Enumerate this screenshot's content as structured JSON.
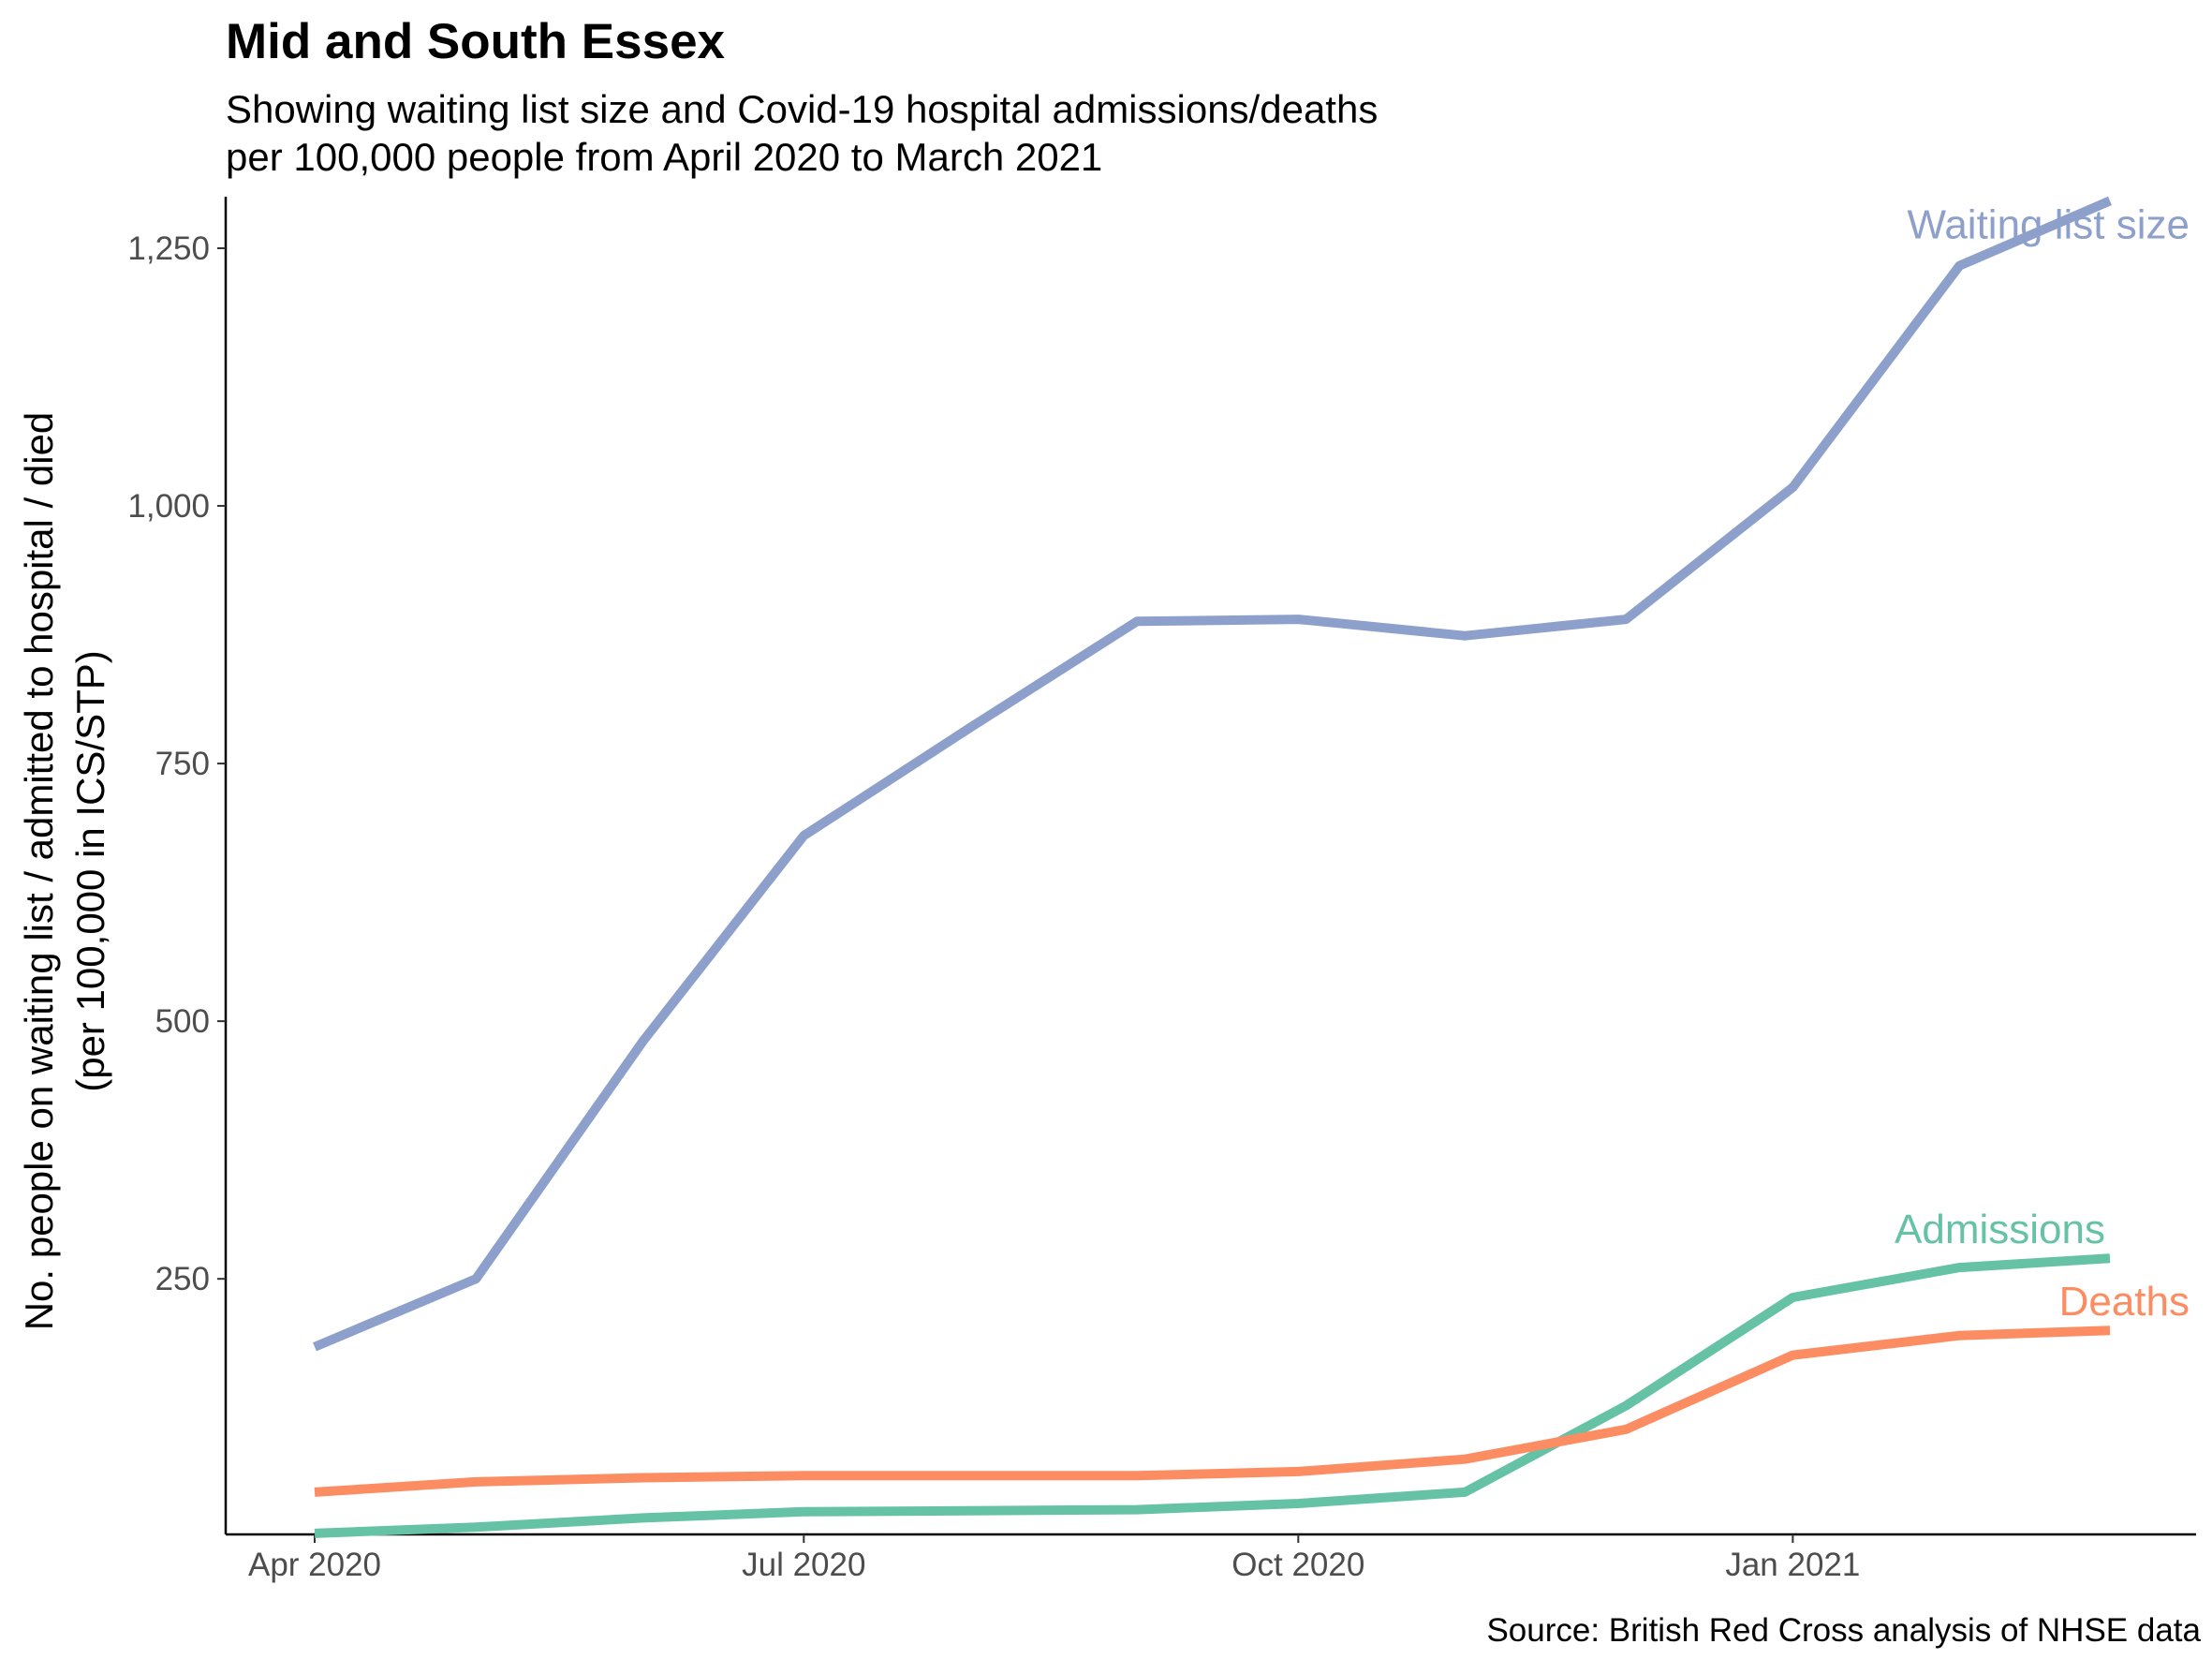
{
  "chart_data": {
    "type": "line",
    "title": "Mid and South Essex",
    "subtitle_lines": [
      "Showing waiting list size and Covid-19 hospital admissions/deaths",
      "per 100,000 people from April 2020 to March 2021"
    ],
    "ylabel_lines": [
      "No. people on waiting list / admitted to hospital / died",
      "(per 100,000 in ICS/STP)"
    ],
    "xlabel": "",
    "caption": "Source: British Red Cross analysis of NHSE data",
    "x": [
      "2020-04",
      "2020-05",
      "2020-06",
      "2020-07",
      "2020-08",
      "2020-09",
      "2020-10",
      "2020-11",
      "2020-12",
      "2021-01",
      "2021-02",
      "2021-03"
    ],
    "x_ticks": [
      {
        "x": "2020-04",
        "label": "Apr 2020"
      },
      {
        "x": "2020-07",
        "label": "Jul 2020"
      },
      {
        "x": "2020-10",
        "label": "Oct 2020"
      },
      {
        "x": "2021-01",
        "label": "Jan 2021"
      }
    ],
    "y_ticks": [
      {
        "value": 250,
        "label": "250"
      },
      {
        "value": 500,
        "label": "500"
      },
      {
        "value": 750,
        "label": "750"
      },
      {
        "value": 1000,
        "label": "1,000"
      },
      {
        "value": 1250,
        "label": "1,250"
      }
    ],
    "ylim": [
      2,
      1300
    ],
    "grid": false,
    "legend": "none (direct labels at line ends)",
    "series": [
      {
        "name": "Waiting list size",
        "color": "#8DA0CB",
        "values": [
          184,
          250,
          480,
          680,
          785,
          888,
          890,
          874,
          890,
          1018,
          1233,
          1296
        ]
      },
      {
        "name": "Admissions",
        "color": "#66C2A5",
        "values": [
          3,
          9,
          18,
          24,
          25,
          26,
          32,
          43,
          127,
          232,
          261,
          270
        ]
      },
      {
        "name": "Deaths",
        "color": "#FC8D62",
        "values": [
          43,
          53,
          57,
          59,
          59,
          59,
          63,
          75,
          104,
          176,
          195,
          200
        ]
      }
    ]
  }
}
